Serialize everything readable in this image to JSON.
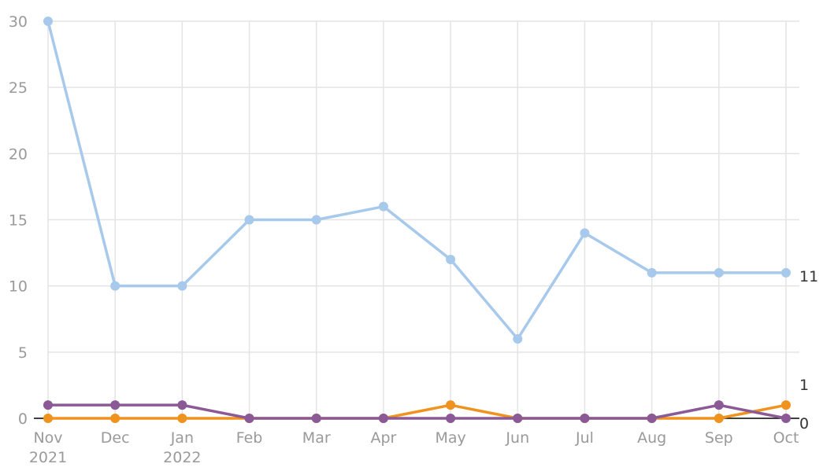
{
  "chart_data": {
    "type": "line",
    "categories": [
      [
        "Nov",
        "2021"
      ],
      [
        "Dec",
        ""
      ],
      [
        "Jan",
        "2022"
      ],
      [
        "Feb",
        ""
      ],
      [
        "Mar",
        ""
      ],
      [
        "Apr",
        ""
      ],
      [
        "May",
        ""
      ],
      [
        "Jun",
        ""
      ],
      [
        "Jul",
        ""
      ],
      [
        "Aug",
        ""
      ],
      [
        "Sep",
        ""
      ],
      [
        "Oct",
        ""
      ]
    ],
    "x": [
      "2021-11",
      "2021-12",
      "2022-01",
      "2022-02",
      "2022-03",
      "2022-04",
      "2022-05",
      "2022-06",
      "2022-07",
      "2022-08",
      "2022-09",
      "2022-10"
    ],
    "series": [
      {
        "color": "#a7c9ec",
        "values": [
          30,
          10,
          10,
          15,
          15,
          16,
          12,
          6,
          14,
          11,
          11,
          11
        ],
        "end_label": "11"
      },
      {
        "color": "#f0921e",
        "values": [
          0,
          0,
          0,
          0,
          0,
          0,
          1,
          0,
          0,
          0,
          0,
          1
        ],
        "end_label": "1"
      },
      {
        "color": "#8b5a96",
        "values": [
          1,
          1,
          1,
          0,
          0,
          0,
          0,
          0,
          0,
          0,
          1,
          0
        ],
        "end_label": "0"
      }
    ],
    "yticks": [
      "0",
      "5",
      "10",
      "15",
      "20",
      "25",
      "30"
    ],
    "ylim": [
      0,
      30
    ],
    "grid": true,
    "legend": "none",
    "title": "",
    "xlabel": "",
    "ylabel": ""
  },
  "colors": {
    "grid": "#e4e4e4",
    "axis": "#000000",
    "tick_text": "#9a9a9a",
    "end_label_text": "#333333"
  }
}
